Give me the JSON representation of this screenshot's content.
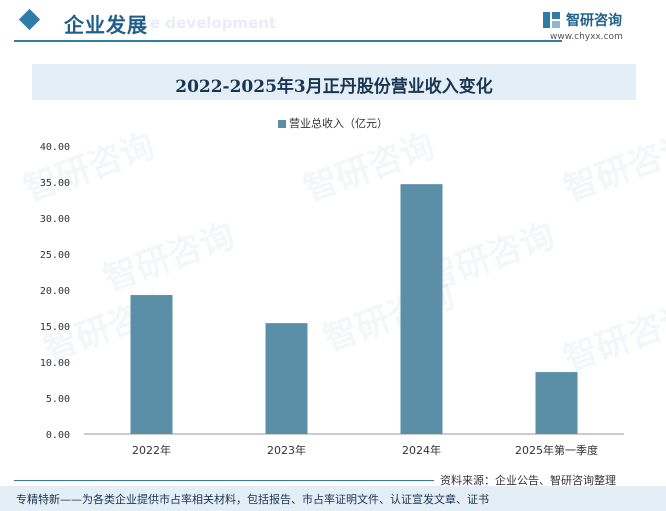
{
  "header": {
    "section_title": "企业发展",
    "watermark_text": "e development",
    "brand_name": "智研咨询",
    "brand_url": "www.chyxx.com"
  },
  "watermark": "智研咨询",
  "colors": {
    "bar": "#5b8fa8",
    "accent": "#2f7ca8",
    "band": "#e4eef6"
  },
  "chart_data": {
    "type": "bar",
    "title": "2022-2025年3月正丹股份营业收入变化",
    "categories": [
      "2022年",
      "2023年",
      "2024年",
      "2025年第一季度"
    ],
    "series": [
      {
        "name": "营业总收入（亿元）",
        "values": [
          19.3,
          15.4,
          34.7,
          8.6
        ]
      }
    ],
    "y_ticks": [
      "0.00",
      "5.00",
      "10.00",
      "15.00",
      "20.00",
      "25.00",
      "30.00",
      "35.00",
      "40.00"
    ],
    "ylim": [
      0,
      40
    ],
    "grid": false,
    "legend_position": "top-center"
  },
  "footer": {
    "source": "资料来源：企业公告、智研咨询整理",
    "slogan": "专精特新——为各类企业提供市占率相关材料，包括报告、市占率证明文件、认证宣发文章、证书"
  }
}
